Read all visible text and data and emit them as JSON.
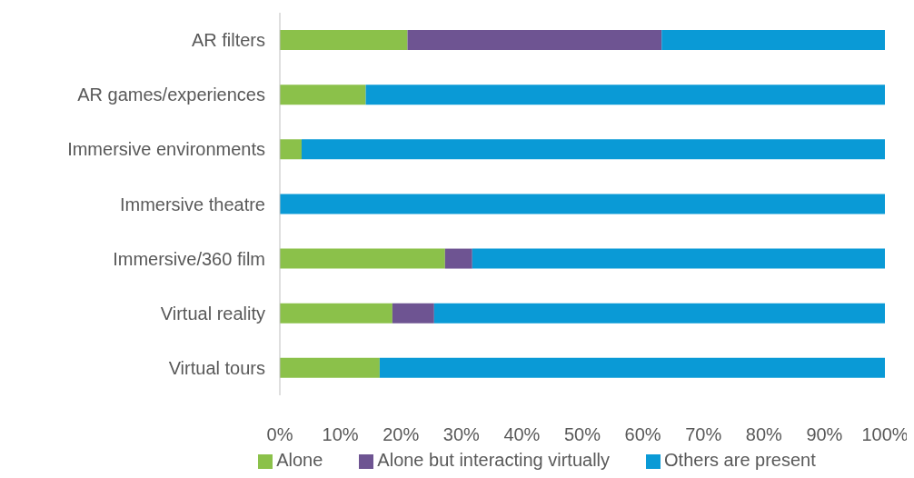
{
  "chart_data": {
    "type": "bar",
    "orientation": "horizontal",
    "stacked": true,
    "categories": [
      "AR filters",
      "AR games/experiences",
      "Immersive environments",
      "Immersive theatre",
      "Immersive/360  film",
      "Virtual reality",
      "Virtual tours"
    ],
    "series": [
      {
        "name": "Alone",
        "color": "#8bc14a",
        "values": [
          21.1,
          14.2,
          3.6,
          0,
          27.3,
          18.6,
          16.5
        ]
      },
      {
        "name": "Alone but interacting virtually",
        "color": "#6e5492",
        "values": [
          42.0,
          0,
          0,
          0,
          4.5,
          6.9,
          0
        ]
      },
      {
        "name": "Others are present",
        "color": "#0a9ad6",
        "values": [
          36.9,
          85.8,
          96.4,
          100,
          68.2,
          74.5,
          83.5
        ]
      }
    ],
    "xlim": [
      0,
      100
    ],
    "xticks": [
      {
        "value": 0,
        "label": "0%"
      },
      {
        "value": 10,
        "label": "10%"
      },
      {
        "value": 20,
        "label": "20%"
      },
      {
        "value": 30,
        "label": "30%"
      },
      {
        "value": 40,
        "label": "40%"
      },
      {
        "value": 50,
        "label": "50%"
      },
      {
        "value": 60,
        "label": "60%"
      },
      {
        "value": 70,
        "label": "70%"
      },
      {
        "value": 80,
        "label": "80%"
      },
      {
        "value": 90,
        "label": "90%"
      },
      {
        "value": 100,
        "label": "100%"
      }
    ],
    "grid": false,
    "legend": "bottom"
  }
}
